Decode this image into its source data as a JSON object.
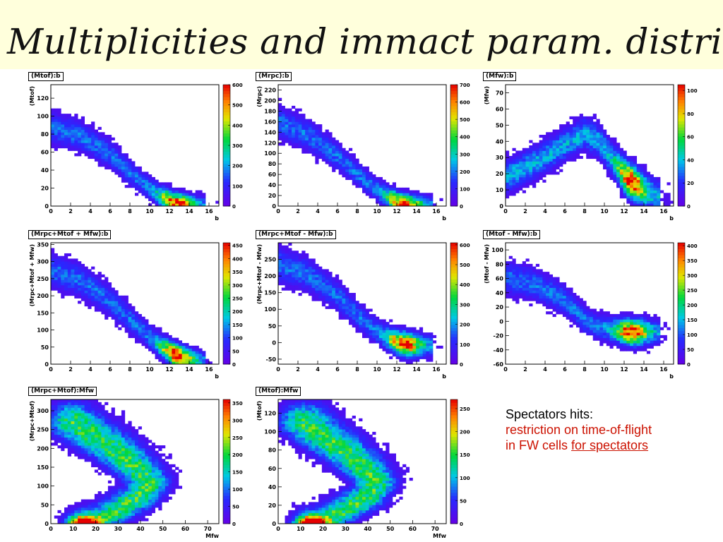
{
  "title": "Multiplicities and immact param. distrib.",
  "note": {
    "line1": "Spectators hits:",
    "line2": "restriction on time-of-flight",
    "line3_plain": "in FW cells ",
    "line3_underlined": "for spectators"
  },
  "colors": {
    "title_bg": "#ffffdc",
    "note_red": "#cc1100"
  },
  "chart_data": [
    {
      "type": "heatmap",
      "title": "(Mtof):b",
      "xlabel": "b",
      "ylabel": "(Mtof)",
      "xlim": [
        0,
        17
      ],
      "ylim": [
        0,
        135
      ],
      "xticks": [
        0,
        2,
        4,
        6,
        8,
        10,
        12,
        14,
        16
      ],
      "yticks": [
        0,
        20,
        40,
        60,
        80,
        100,
        120
      ],
      "zmax": 600,
      "zticks": [
        0,
        100,
        200,
        300,
        400,
        500,
        600
      ],
      "shape": "fall",
      "ridge": [
        [
          0,
          88
        ],
        [
          3,
          78
        ],
        [
          6,
          58
        ],
        [
          9,
          28
        ],
        [
          11,
          12
        ],
        [
          12.5,
          3
        ],
        [
          14,
          1
        ],
        [
          15.5,
          0
        ]
      ]
    },
    {
      "type": "heatmap",
      "title": "(Mrpc):b",
      "xlabel": "b",
      "ylabel": "(Mrpc)",
      "xlim": [
        0,
        17
      ],
      "ylim": [
        0,
        230
      ],
      "xticks": [
        0,
        2,
        4,
        6,
        8,
        10,
        12,
        14,
        16
      ],
      "yticks": [
        0,
        20,
        40,
        60,
        80,
        100,
        120,
        140,
        160,
        180,
        200,
        220
      ],
      "zmax": 700,
      "zticks": [
        0,
        100,
        200,
        300,
        400,
        500,
        600,
        700
      ],
      "shape": "fall",
      "ridge": [
        [
          0,
          160
        ],
        [
          3,
          135
        ],
        [
          6,
          95
        ],
        [
          9,
          45
        ],
        [
          11,
          18
        ],
        [
          12.5,
          3
        ],
        [
          14,
          1
        ],
        [
          15.5,
          0
        ]
      ]
    },
    {
      "type": "heatmap",
      "title": "(Mfw):b",
      "xlabel": "b",
      "ylabel": "(Mfw)",
      "xlim": [
        0,
        17
      ],
      "ylim": [
        0,
        75
      ],
      "xticks": [
        0,
        2,
        4,
        6,
        8,
        10,
        12,
        14,
        16
      ],
      "yticks": [
        0,
        10,
        20,
        30,
        40,
        50,
        60,
        70
      ],
      "zmax": 105,
      "zticks": [
        0,
        20,
        40,
        60,
        80,
        100
      ],
      "shape": "peak",
      "ridge": [
        [
          0,
          18
        ],
        [
          3,
          27
        ],
        [
          6,
          38
        ],
        [
          8,
          45
        ],
        [
          9.5,
          40
        ],
        [
          11,
          27
        ],
        [
          12.5,
          16
        ],
        [
          14,
          10
        ],
        [
          15.5,
          6
        ]
      ]
    },
    {
      "type": "heatmap",
      "title": "(Mrpc+Mtof + Mfw):b",
      "xlabel": "b",
      "ylabel": "(Mrpc+Mtof + Mfw)",
      "xlim": [
        0,
        17
      ],
      "ylim": [
        0,
        355
      ],
      "xticks": [
        0,
        2,
        4,
        6,
        8,
        10,
        12,
        14,
        16
      ],
      "yticks": [
        0,
        50,
        100,
        150,
        200,
        250,
        300,
        350
      ],
      "zmax": 460,
      "zticks": [
        0,
        50,
        100,
        150,
        200,
        250,
        300,
        350,
        400,
        450
      ],
      "shape": "fall",
      "ridge": [
        [
          0,
          275
        ],
        [
          3,
          245
        ],
        [
          6,
          185
        ],
        [
          9,
          105
        ],
        [
          11,
          55
        ],
        [
          12.5,
          28
        ],
        [
          14,
          15
        ],
        [
          15.5,
          8
        ]
      ]
    },
    {
      "type": "heatmap",
      "title": "(Mrpc+Mtof - Mfw):b",
      "xlabel": "b",
      "ylabel": "(Mrpc+Mtof - Mfw)",
      "xlim": [
        0,
        17
      ],
      "ylim": [
        -65,
        300
      ],
      "xticks": [
        0,
        2,
        4,
        6,
        8,
        10,
        12,
        14,
        16
      ],
      "yticks": [
        -50,
        0,
        50,
        100,
        150,
        200,
        250
      ],
      "zmax": 610,
      "zticks": [
        0,
        100,
        200,
        300,
        400,
        500,
        600
      ],
      "shape": "fall",
      "ridge": [
        [
          0,
          235
        ],
        [
          3,
          205
        ],
        [
          6,
          140
        ],
        [
          9,
          55
        ],
        [
          11,
          15
        ],
        [
          12.5,
          -3
        ],
        [
          14,
          -8
        ],
        [
          15.5,
          -10
        ]
      ]
    },
    {
      "type": "heatmap",
      "title": "(Mtof - Mfw):b",
      "xlabel": "b",
      "ylabel": "(Mtof - Mfw)",
      "xlim": [
        0,
        17
      ],
      "ylim": [
        -60,
        110
      ],
      "xticks": [
        0,
        2,
        4,
        6,
        8,
        10,
        12,
        14,
        16
      ],
      "yticks": [
        -60,
        -40,
        -20,
        0,
        20,
        40,
        60,
        80,
        100
      ],
      "zmax": 410,
      "zticks": [
        0,
        50,
        100,
        150,
        200,
        250,
        300,
        350,
        400
      ],
      "shape": "fall",
      "ridge": [
        [
          0,
          62
        ],
        [
          3,
          52
        ],
        [
          6,
          30
        ],
        [
          8,
          2
        ],
        [
          9.5,
          -8
        ],
        [
          11,
          -12
        ],
        [
          12.5,
          -15
        ],
        [
          14,
          -15
        ],
        [
          15.5,
          -15
        ]
      ]
    },
    {
      "type": "heatmap",
      "title": "(Mrpc+Mtof):Mfw",
      "xlabel": "Mfw",
      "ylabel": "(Mrpc+Mtof)",
      "xlim": [
        0,
        75
      ],
      "ylim": [
        0,
        330
      ],
      "xticks": [
        0,
        10,
        20,
        30,
        40,
        50,
        60,
        70
      ],
      "yticks": [
        0,
        50,
        100,
        150,
        200,
        250,
        300
      ],
      "zmax": 360,
      "zticks": [
        0,
        50,
        100,
        150,
        200,
        250,
        300,
        350
      ],
      "shape": "chevron",
      "ridge": [
        [
          10,
          270
        ],
        [
          20,
          230
        ],
        [
          30,
          190
        ],
        [
          38,
          150
        ],
        [
          44,
          110
        ],
        [
          40,
          75
        ],
        [
          32,
          45
        ],
        [
          24,
          18
        ],
        [
          15,
          4
        ]
      ]
    },
    {
      "type": "heatmap",
      "title": "(Mtof):Mfw",
      "xlabel": "Mfw",
      "ylabel": "(Mtof)",
      "xlim": [
        0,
        75
      ],
      "ylim": [
        0,
        135
      ],
      "xticks": [
        0,
        10,
        20,
        30,
        40,
        50,
        60,
        70
      ],
      "yticks": [
        0,
        20,
        40,
        60,
        80,
        100,
        120
      ],
      "zmax": 270,
      "zticks": [
        0,
        50,
        100,
        150,
        200,
        250
      ],
      "shape": "chevron",
      "ridge": [
        [
          12,
          110
        ],
        [
          20,
          95
        ],
        [
          30,
          78
        ],
        [
          38,
          62
        ],
        [
          44,
          45
        ],
        [
          40,
          30
        ],
        [
          32,
          18
        ],
        [
          24,
          8
        ],
        [
          15,
          2
        ]
      ]
    }
  ]
}
